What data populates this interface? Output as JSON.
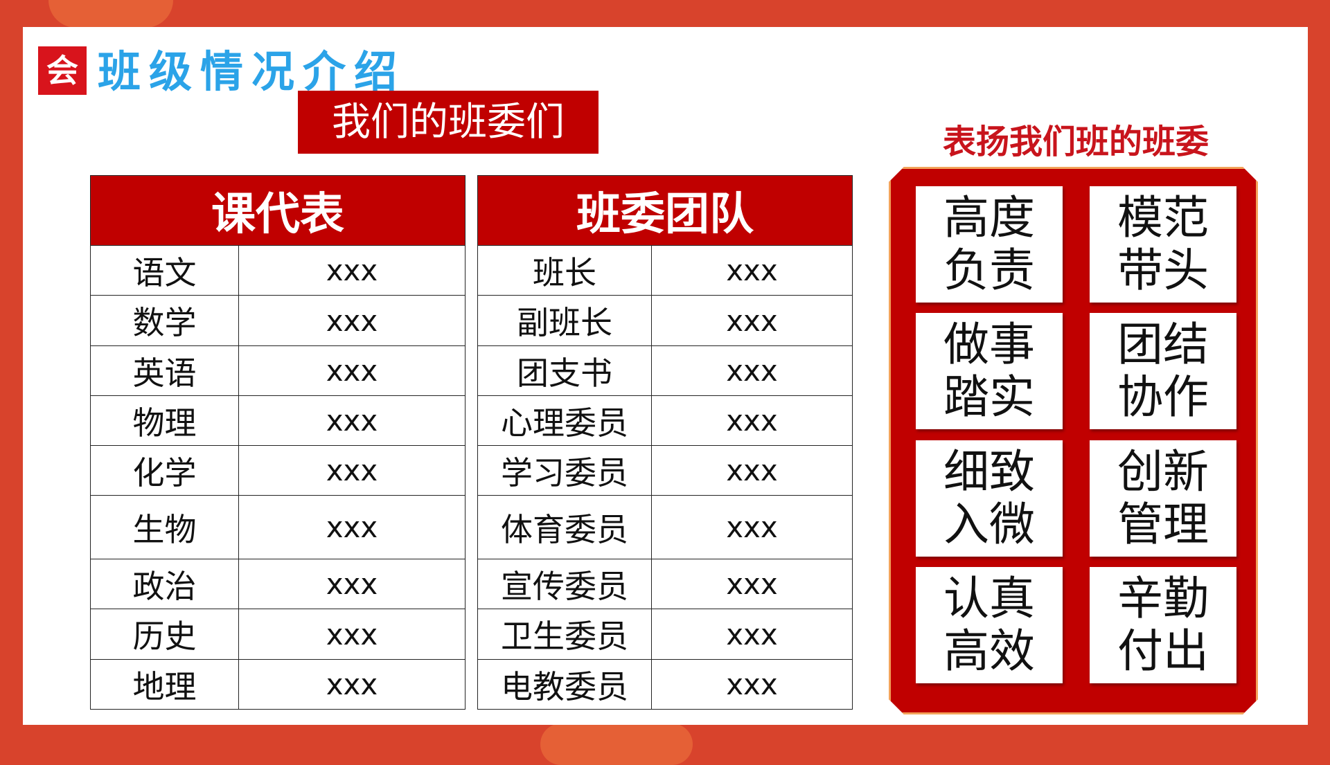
{
  "header": {
    "logo_text": "会",
    "title": "班级情况介绍",
    "banner": "我们的班委们"
  },
  "table_subjects": {
    "header": "课代表",
    "rows": [
      {
        "label": "语文",
        "value": "xxx"
      },
      {
        "label": "数学",
        "value": "xxx"
      },
      {
        "label": "英语",
        "value": "xxx"
      },
      {
        "label": "物理",
        "value": "xxx"
      },
      {
        "label": "化学",
        "value": "xxx"
      },
      {
        "label": "生物",
        "value": "xxx"
      },
      {
        "label": "政治",
        "value": "xxx"
      },
      {
        "label": "历史",
        "value": "xxx"
      },
      {
        "label": "地理",
        "value": "xxx"
      }
    ]
  },
  "table_committee": {
    "header": "班委团队",
    "rows": [
      {
        "label": "班长",
        "value": "xxx"
      },
      {
        "label": "副班长",
        "value": "xxx"
      },
      {
        "label": "团支书",
        "value": "xxx"
      },
      {
        "label": "心理委员",
        "value": "xxx"
      },
      {
        "label": "学习委员",
        "value": "xxx"
      },
      {
        "label": "体育委员",
        "value": "xxx"
      },
      {
        "label": "宣传委员",
        "value": "xxx"
      },
      {
        "label": "卫生委员",
        "value": "xxx"
      },
      {
        "label": "电教委员",
        "value": "xxx"
      }
    ]
  },
  "praise": {
    "title": "表扬我们班的班委",
    "cards": [
      {
        "line1": "高度",
        "line2": "负责"
      },
      {
        "line1": "模范",
        "line2": "带头"
      },
      {
        "line1": "做事",
        "line2": "踏实"
      },
      {
        "line1": "团结",
        "line2": "协作"
      },
      {
        "line1": "细致",
        "line2": "入微"
      },
      {
        "line1": "创新",
        "line2": "管理"
      },
      {
        "line1": "认真",
        "line2": "高效"
      },
      {
        "line1": "辛勤",
        "line2": "付出"
      }
    ]
  },
  "colors": {
    "background": "#d8432c",
    "title_blue": "#2ba3e8",
    "accent_red": "#c00000"
  }
}
